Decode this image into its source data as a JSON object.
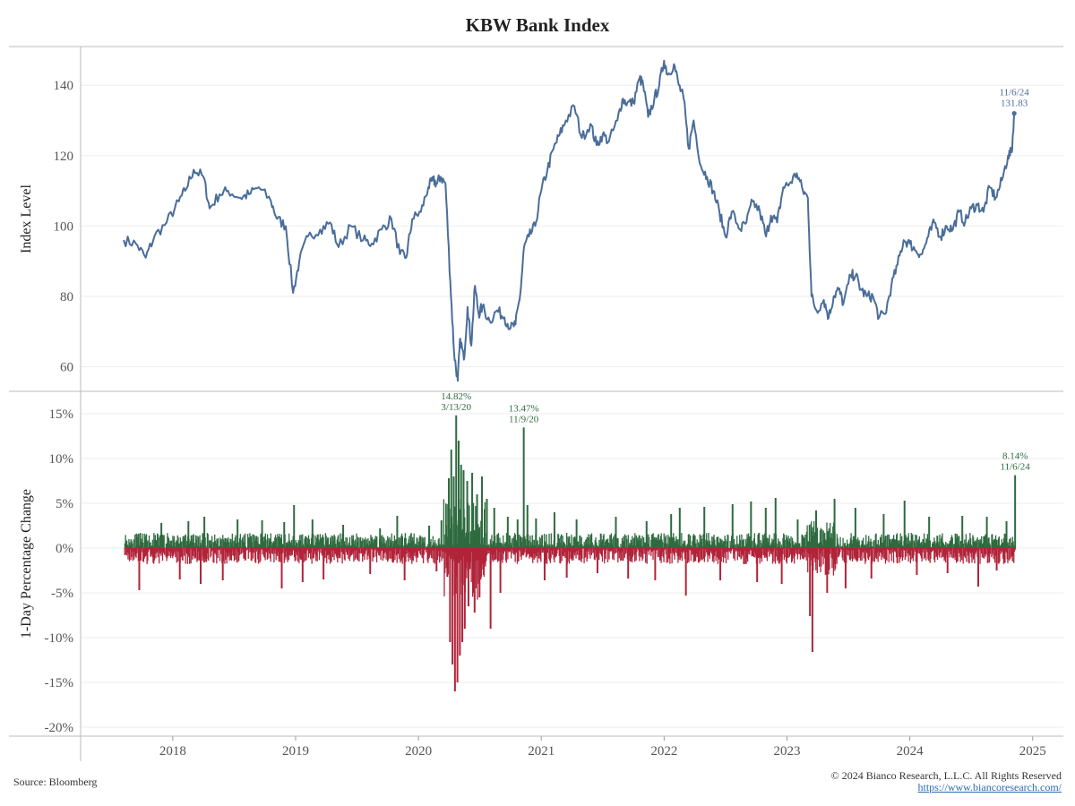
{
  "chart_data": {
    "type": "line+bar",
    "title": "KBW Bank Index",
    "x_ticks": [
      "2018",
      "2019",
      "2020",
      "2021",
      "2022",
      "2023",
      "2024",
      "2025"
    ],
    "x_range": [
      2017.25,
      2025.25
    ],
    "upper": {
      "type": "line",
      "ylabel": "Index Level",
      "ylim": [
        53,
        151
      ],
      "yticks": [
        60,
        80,
        100,
        120,
        140
      ],
      "ytick_labels": [
        "60",
        "80",
        "100",
        "120",
        "140"
      ],
      "line_color": "#4a6d9a",
      "series": [
        [
          2017.6,
          96
        ],
        [
          2017.7,
          95
        ],
        [
          2017.78,
          91
        ],
        [
          2017.85,
          97
        ],
        [
          2017.95,
          101
        ],
        [
          2018.05,
          107
        ],
        [
          2018.1,
          110
        ],
        [
          2018.17,
          116
        ],
        [
          2018.25,
          114
        ],
        [
          2018.3,
          105
        ],
        [
          2018.38,
          109
        ],
        [
          2018.45,
          110
        ],
        [
          2018.55,
          108
        ],
        [
          2018.62,
          109
        ],
        [
          2018.7,
          111
        ],
        [
          2018.8,
          107
        ],
        [
          2018.85,
          102
        ],
        [
          2018.92,
          100
        ],
        [
          2018.98,
          81
        ],
        [
          2019.03,
          90
        ],
        [
          2019.1,
          97
        ],
        [
          2019.2,
          99
        ],
        [
          2019.28,
          101
        ],
        [
          2019.35,
          94
        ],
        [
          2019.45,
          100
        ],
        [
          2019.55,
          96
        ],
        [
          2019.62,
          95
        ],
        [
          2019.7,
          99
        ],
        [
          2019.78,
          102
        ],
        [
          2019.85,
          92
        ],
        [
          2019.9,
          91
        ],
        [
          2019.95,
          102
        ],
        [
          2020.02,
          104
        ],
        [
          2020.08,
          111
        ],
        [
          2020.12,
          113
        ],
        [
          2020.15,
          112
        ],
        [
          2020.18,
          114
        ],
        [
          2020.22,
          112
        ],
        [
          2020.26,
          84
        ],
        [
          2020.29,
          64
        ],
        [
          2020.32,
          56
        ],
        [
          2020.34,
          68
        ],
        [
          2020.37,
          62
        ],
        [
          2020.4,
          77
        ],
        [
          2020.43,
          66
        ],
        [
          2020.46,
          83
        ],
        [
          2020.49,
          75
        ],
        [
          2020.52,
          77
        ],
        [
          2020.58,
          73
        ],
        [
          2020.64,
          76
        ],
        [
          2020.7,
          74
        ],
        [
          2020.75,
          71
        ],
        [
          2020.79,
          72
        ],
        [
          2020.83,
          81
        ],
        [
          2020.86,
          94
        ],
        [
          2020.9,
          97
        ],
        [
          2020.95,
          100
        ],
        [
          2021.0,
          110
        ],
        [
          2021.05,
          116
        ],
        [
          2021.1,
          122
        ],
        [
          2021.15,
          126
        ],
        [
          2021.2,
          130
        ],
        [
          2021.27,
          134
        ],
        [
          2021.33,
          125
        ],
        [
          2021.4,
          129
        ],
        [
          2021.45,
          123
        ],
        [
          2021.5,
          126
        ],
        [
          2021.55,
          124
        ],
        [
          2021.62,
          130
        ],
        [
          2021.66,
          136
        ],
        [
          2021.7,
          135
        ],
        [
          2021.75,
          135
        ],
        [
          2021.8,
          142
        ],
        [
          2021.83,
          140
        ],
        [
          2021.87,
          131
        ],
        [
          2021.92,
          136
        ],
        [
          2021.96,
          140
        ],
        [
          2022.0,
          147
        ],
        [
          2022.03,
          143
        ],
        [
          2022.08,
          146
        ],
        [
          2022.12,
          140
        ],
        [
          2022.16,
          136
        ],
        [
          2022.2,
          122
        ],
        [
          2022.24,
          130
        ],
        [
          2022.3,
          117
        ],
        [
          2022.35,
          114
        ],
        [
          2022.4,
          110
        ],
        [
          2022.45,
          104
        ],
        [
          2022.5,
          97
        ],
        [
          2022.55,
          104
        ],
        [
          2022.62,
          99
        ],
        [
          2022.67,
          101
        ],
        [
          2022.72,
          107
        ],
        [
          2022.78,
          104
        ],
        [
          2022.83,
          97
        ],
        [
          2022.87,
          103
        ],
        [
          2022.92,
          101
        ],
        [
          2022.97,
          111
        ],
        [
          2023.02,
          112
        ],
        [
          2023.08,
          115
        ],
        [
          2023.13,
          110
        ],
        [
          2023.17,
          108
        ],
        [
          2023.2,
          80
        ],
        [
          2023.24,
          76
        ],
        [
          2023.3,
          79
        ],
        [
          2023.34,
          74
        ],
        [
          2023.38,
          80
        ],
        [
          2023.42,
          82
        ],
        [
          2023.46,
          78
        ],
        [
          2023.52,
          86
        ],
        [
          2023.56,
          86
        ],
        [
          2023.6,
          82
        ],
        [
          2023.65,
          80
        ],
        [
          2023.7,
          80
        ],
        [
          2023.75,
          74
        ],
        [
          2023.8,
          75
        ],
        [
          2023.85,
          83
        ],
        [
          2023.9,
          89
        ],
        [
          2023.95,
          96
        ],
        [
          2024.0,
          95
        ],
        [
          2024.05,
          93
        ],
        [
          2024.1,
          92
        ],
        [
          2024.15,
          97
        ],
        [
          2024.2,
          101
        ],
        [
          2024.25,
          97
        ],
        [
          2024.3,
          100
        ],
        [
          2024.35,
          99
        ],
        [
          2024.4,
          104
        ],
        [
          2024.45,
          101
        ],
        [
          2024.5,
          105
        ],
        [
          2024.55,
          106
        ],
        [
          2024.6,
          104
        ],
        [
          2024.65,
          111
        ],
        [
          2024.7,
          108
        ],
        [
          2024.75,
          113
        ],
        [
          2024.8,
          120
        ],
        [
          2024.83,
          121
        ],
        [
          2024.85,
          132
        ]
      ],
      "last_point_label": [
        "11/6/24",
        "131.83"
      ]
    },
    "lower": {
      "type": "bar",
      "ylabel": "1-Day Percentage Change",
      "ylim": [
        -21,
        17.5
      ],
      "yticks": [
        -20,
        -15,
        -10,
        -5,
        0,
        5,
        10,
        15
      ],
      "ytick_labels": [
        "-20%",
        "-15%",
        "-10%",
        "-5%",
        "0%",
        "5%",
        "10%",
        "15%"
      ],
      "positive_color": "#2e6b3f",
      "negative_color": "#b0243a",
      "spikes": [
        [
          2017.72,
          -4.7
        ],
        [
          2017.9,
          2.8
        ],
        [
          2018.05,
          -3.5
        ],
        [
          2018.12,
          3.0
        ],
        [
          2018.22,
          -4.0
        ],
        [
          2018.25,
          3.5
        ],
        [
          2018.4,
          -3.6
        ],
        [
          2018.52,
          3.2
        ],
        [
          2018.72,
          3.1
        ],
        [
          2018.88,
          -4.5
        ],
        [
          2018.9,
          2.9
        ],
        [
          2018.98,
          4.8
        ],
        [
          2019.05,
          -3.8
        ],
        [
          2019.13,
          3.2
        ],
        [
          2019.22,
          -3.5
        ],
        [
          2019.38,
          2.6
        ],
        [
          2019.6,
          -2.9
        ],
        [
          2019.68,
          2.2
        ],
        [
          2019.82,
          3.6
        ],
        [
          2019.88,
          -3.6
        ],
        [
          2020.08,
          2.5
        ],
        [
          2020.14,
          -2.6
        ],
        [
          2020.18,
          3.1
        ],
        [
          2020.24,
          7.8
        ],
        [
          2020.25,
          -10.5
        ],
        [
          2020.26,
          11.0
        ],
        [
          2020.27,
          -13.0
        ],
        [
          2020.28,
          8.0
        ],
        [
          2020.29,
          -16.0
        ],
        [
          2020.3,
          14.82
        ],
        [
          2020.31,
          -15.0
        ],
        [
          2020.32,
          12.0
        ],
        [
          2020.33,
          -12.0
        ],
        [
          2020.34,
          9.3
        ],
        [
          2020.35,
          -10.5
        ],
        [
          2020.36,
          8.7
        ],
        [
          2020.37,
          -9.0
        ],
        [
          2020.39,
          7.5
        ],
        [
          2020.4,
          -6.5
        ],
        [
          2020.43,
          8.4
        ],
        [
          2020.45,
          -7.2
        ],
        [
          2020.47,
          6.0
        ],
        [
          2020.49,
          -5.5
        ],
        [
          2020.51,
          8.0
        ],
        [
          2020.55,
          5.5
        ],
        [
          2020.58,
          -9.0
        ],
        [
          2020.61,
          4.5
        ],
        [
          2020.66,
          -5.0
        ],
        [
          2020.72,
          3.5
        ],
        [
          2020.8,
          3.2
        ],
        [
          2020.85,
          13.47
        ],
        [
          2020.88,
          4.8
        ],
        [
          2020.95,
          3.3
        ],
        [
          2021.02,
          -3.6
        ],
        [
          2021.1,
          4.0
        ],
        [
          2021.2,
          -3.3
        ],
        [
          2021.28,
          3.2
        ],
        [
          2021.45,
          -2.8
        ],
        [
          2021.6,
          3.5
        ],
        [
          2021.7,
          -3.4
        ],
        [
          2021.85,
          3.0
        ],
        [
          2021.92,
          -3.6
        ],
        [
          2022.05,
          3.8
        ],
        [
          2022.12,
          4.5
        ],
        [
          2022.17,
          -5.3
        ],
        [
          2022.32,
          4.6
        ],
        [
          2022.45,
          -3.6
        ],
        [
          2022.55,
          4.9
        ],
        [
          2022.7,
          5.2
        ],
        [
          2022.75,
          -3.8
        ],
        [
          2022.82,
          4.5
        ],
        [
          2022.9,
          5.6
        ],
        [
          2022.95,
          -4.0
        ],
        [
          2023.08,
          3.2
        ],
        [
          2023.18,
          -7.6
        ],
        [
          2023.2,
          -11.6
        ],
        [
          2023.23,
          4.2
        ],
        [
          2023.32,
          -5.0
        ],
        [
          2023.38,
          5.5
        ],
        [
          2023.47,
          -4.5
        ],
        [
          2023.55,
          4.5
        ],
        [
          2023.68,
          -3.4
        ],
        [
          2023.78,
          3.8
        ],
        [
          2023.95,
          5.3
        ],
        [
          2024.05,
          -3.0
        ],
        [
          2024.15,
          3.5
        ],
        [
          2024.3,
          -2.8
        ],
        [
          2024.42,
          3.6
        ],
        [
          2024.55,
          -4.3
        ],
        [
          2024.62,
          3.5
        ],
        [
          2024.7,
          -2.5
        ],
        [
          2024.78,
          3.0
        ],
        [
          2024.85,
          8.14
        ]
      ],
      "annotations": [
        {
          "x": 2020.3,
          "lines": [
            "14.82%",
            "3/13/20"
          ]
        },
        {
          "x": 2020.85,
          "lines": [
            "13.47%",
            "11/9/20"
          ]
        },
        {
          "x": 2024.85,
          "lines": [
            "8.14%",
            "11/6/24"
          ]
        }
      ]
    }
  },
  "footer": {
    "source": "Source: Bloomberg",
    "copyright": "© 2024 Bianco Research, L.L.C. All Rights Reserved",
    "url": "https://www.biancoresearch.com/"
  }
}
